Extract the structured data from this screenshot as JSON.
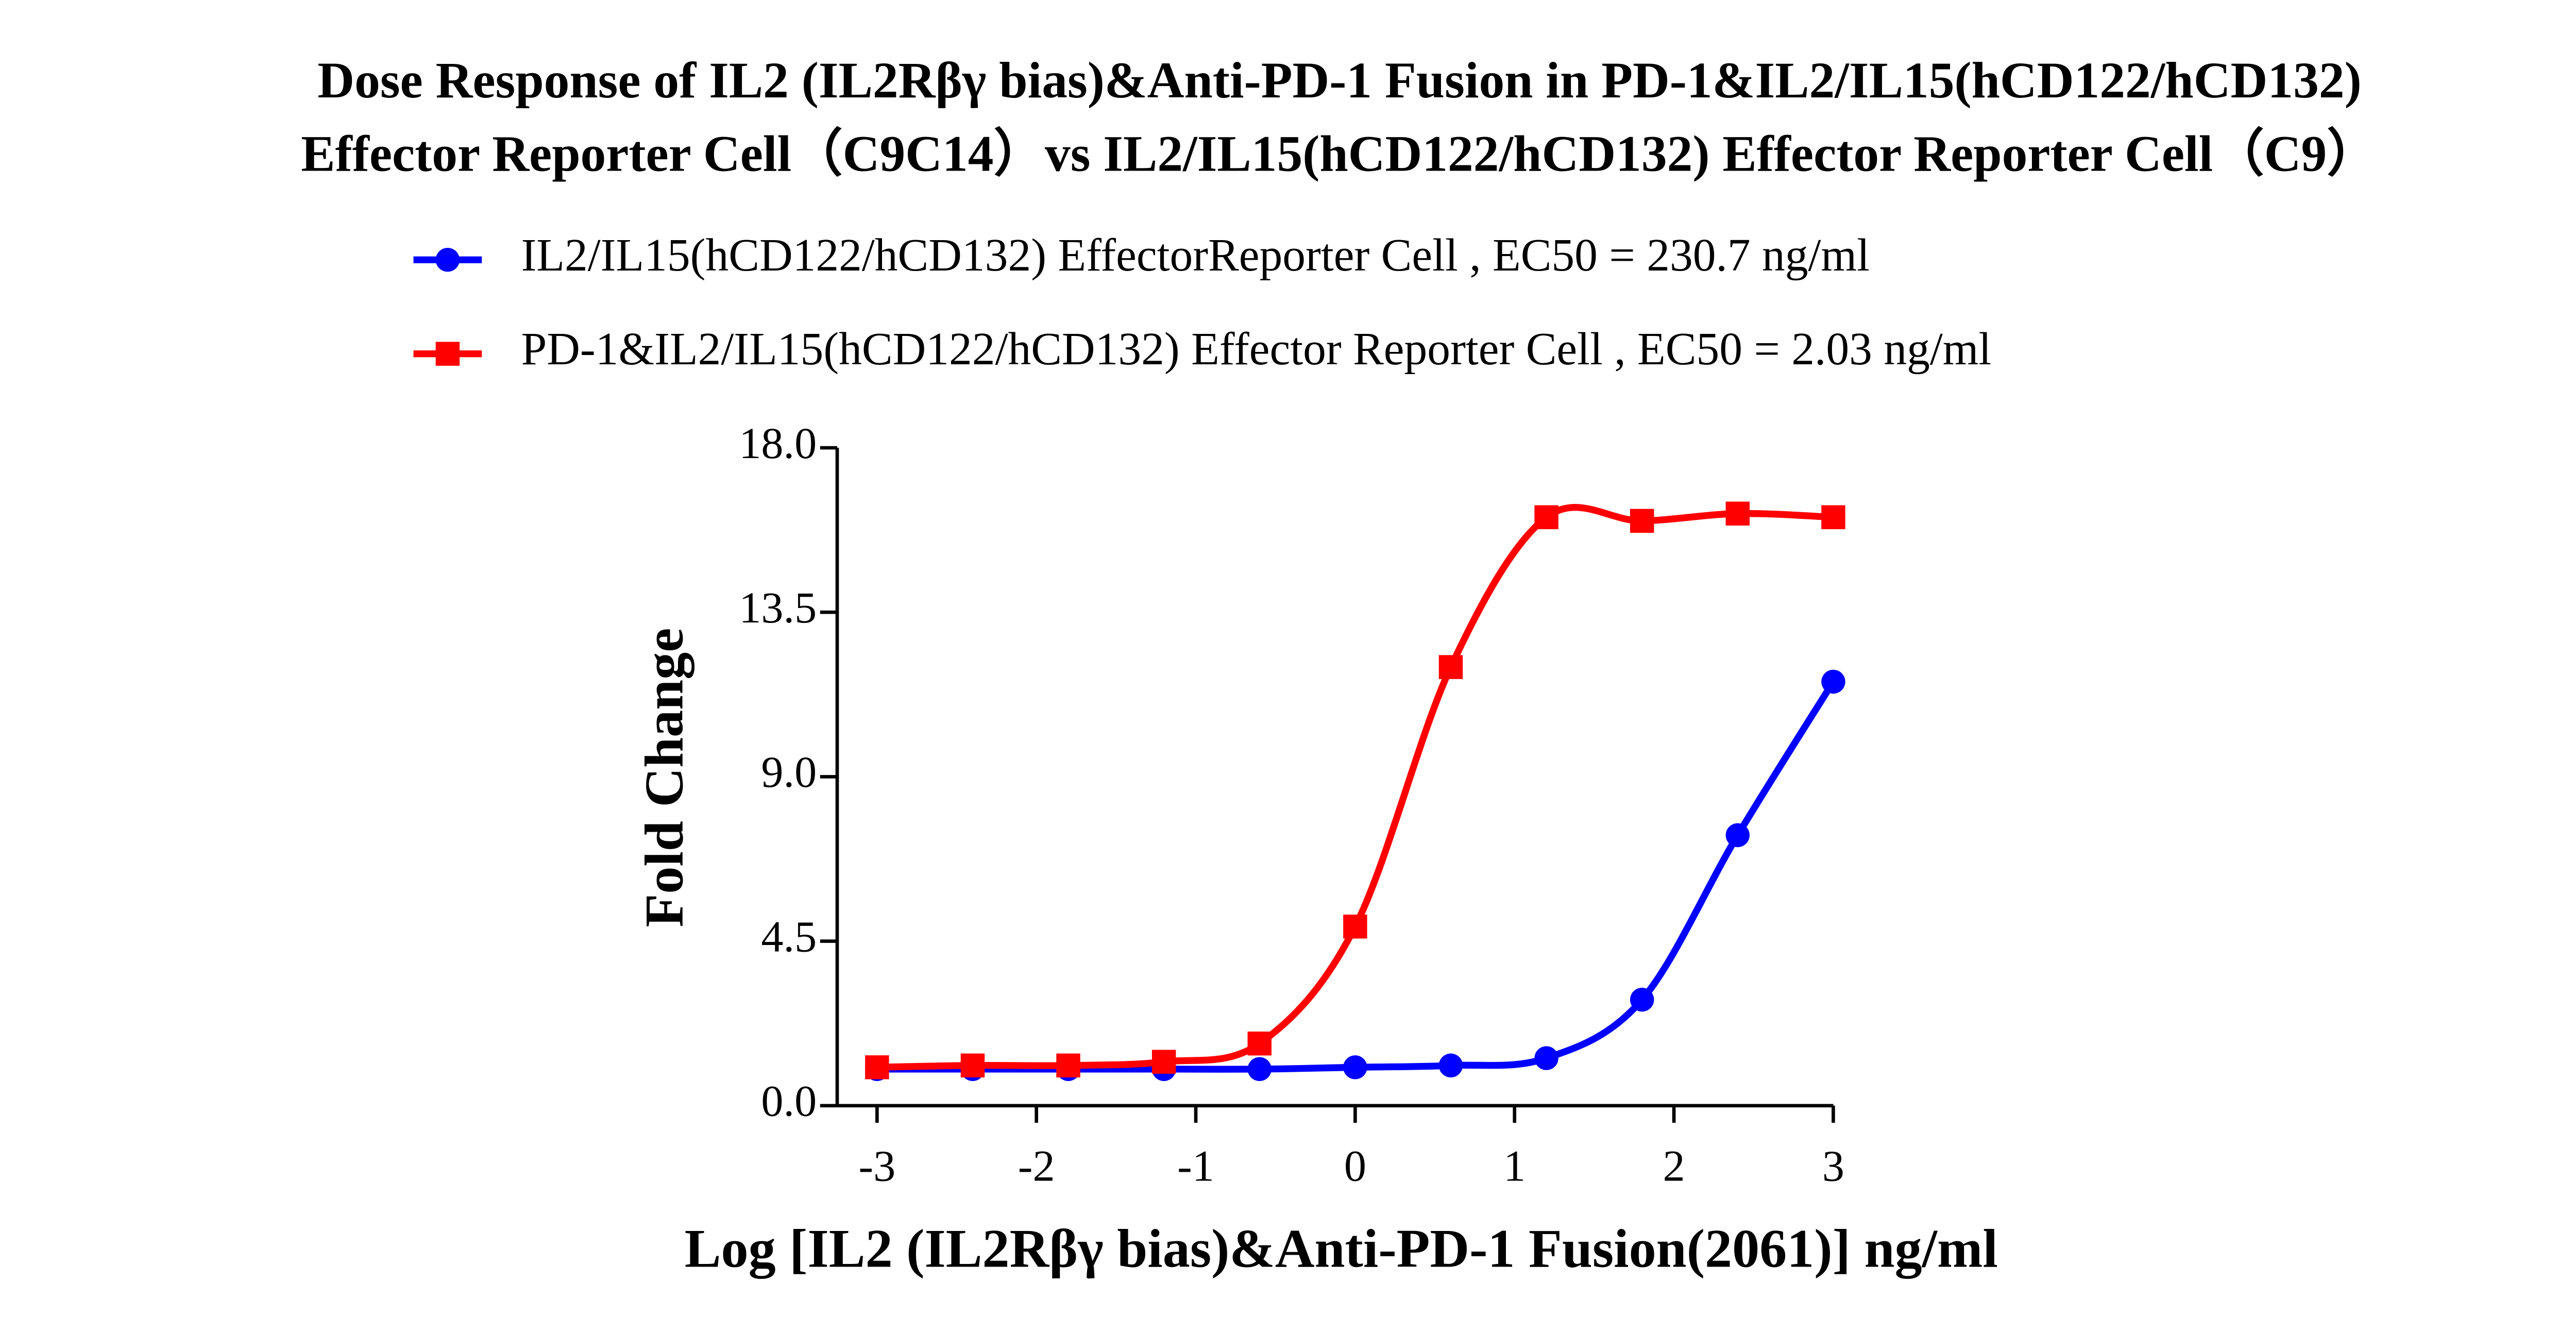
{
  "chart_data": {
    "type": "scatter",
    "title": "Dose Response of IL2 (IL2Rβγ bias)&Anti-PD-1 Fusion in PD-1&IL2/IL15(hCD122/hCD132)",
    "subtitle": "Effector Reporter Cell（C9C14）vs IL2/IL15(hCD122/hCD132) Effector Reporter Cell（C9）",
    "x_label": "Log [IL2 (IL2Rβγ bias)&Anti-PD-1 Fusion(2061)] ng/ml",
    "y_label": "Fold Change",
    "x": [
      -3,
      -2.4,
      -1.8,
      -1.2,
      -0.6,
      0,
      0.6,
      1.2,
      1.8,
      2.4,
      3
    ],
    "series": [
      {
        "name": "IL2/IL15(hCD122/hCD132) EffectorReporter Cell , EC50 = 230.7 ng/ml",
        "color": "#0000ff",
        "marker": "circle",
        "values": [
          1.0,
          1.0,
          1.0,
          1.0,
          1.0,
          1.05,
          1.1,
          1.3,
          2.9,
          7.4,
          11.6
        ]
      },
      {
        "name": "PD-1&IL2/IL15(hCD122/hCD132) Effector Reporter Cell , EC50 = 2.03 ng/ml",
        "color": "#ff0000",
        "marker": "square",
        "values": [
          1.05,
          1.1,
          1.1,
          1.2,
          1.7,
          4.9,
          12.0,
          16.1,
          16.0,
          16.2,
          16.1
        ]
      }
    ],
    "xlim": [
      -3.25,
      3
    ],
    "ylim": [
      0,
      18
    ],
    "xticks": [
      -3,
      -2,
      -1,
      0,
      1,
      2,
      3
    ],
    "yticks": [
      {
        "value": 0,
        "label": "0.0"
      },
      {
        "value": 4.5,
        "label": "4.5"
      },
      {
        "value": 9,
        "label": "9.0"
      },
      {
        "value": 13.5,
        "label": "13.5"
      },
      {
        "value": 18,
        "label": "18.0"
      }
    ],
    "legend": "top"
  }
}
